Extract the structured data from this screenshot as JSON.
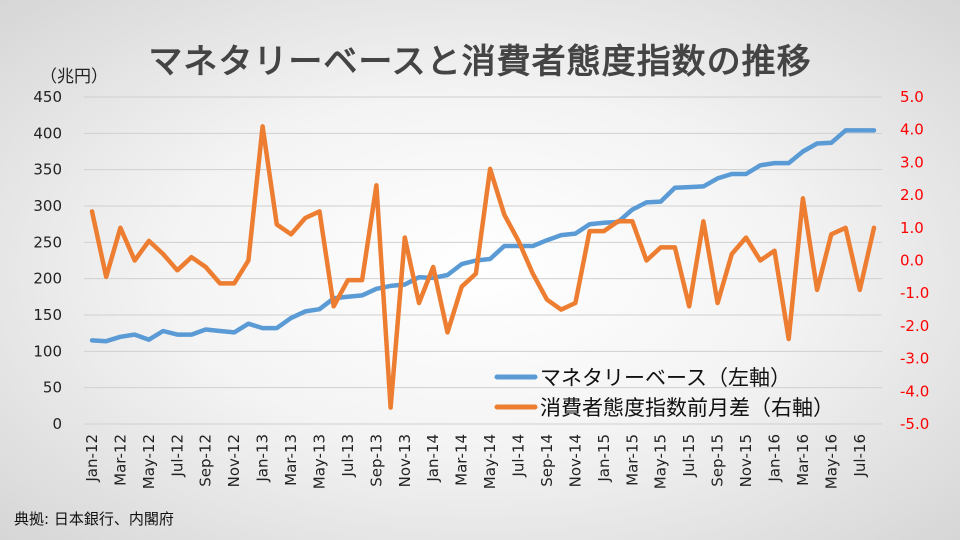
{
  "title": "マネタリーベースと消費者態度指数の推移",
  "left_unit": "（兆円）",
  "source": "典拠: 日本銀行、内閣府",
  "colors": {
    "series1": "#5b9bd5",
    "series2": "#ed7d31",
    "left_axis": "#222222",
    "right_axis": "#ff0000"
  },
  "chart_data": {
    "type": "line",
    "x_labels_shown": [
      "Jan-12",
      "Mar-12",
      "May-12",
      "Jul-12",
      "Sep-12",
      "Nov-12",
      "Jan-13",
      "Mar-13",
      "May-13",
      "Jul-13",
      "Sep-13",
      "Nov-13",
      "Jan-14",
      "Mar-14",
      "May-14",
      "Jul-14",
      "Sep-14",
      "Nov-14",
      "Jan-15",
      "Mar-15",
      "May-15",
      "Jul-15",
      "Sep-15",
      "Nov-15",
      "Jan-16",
      "Mar-16",
      "May-16",
      "Jul-16"
    ],
    "y_left": {
      "min": 0,
      "max": 450,
      "ticks": [
        "0",
        "50",
        "100",
        "150",
        "200",
        "250",
        "300",
        "350",
        "400",
        "450"
      ]
    },
    "y_right": {
      "min": -5,
      "max": 5,
      "ticks": [
        "-5.0",
        "-4.0",
        "-3.0",
        "-2.0",
        "-1.0",
        "0.0",
        "1.0",
        "2.0",
        "3.0",
        "4.0",
        "5.0"
      ]
    },
    "legend_position": "bottom-right",
    "series": [
      {
        "name": "マネタリーベース（左軸）",
        "axis": "left",
        "values": [
          115,
          114,
          120,
          123,
          116,
          128,
          123,
          123,
          130,
          128,
          126,
          138,
          132,
          132,
          146,
          155,
          158,
          173,
          175,
          177,
          186,
          190,
          192,
          202,
          201,
          205,
          220,
          225,
          227,
          245,
          245,
          245,
          253,
          260,
          262,
          275,
          277,
          278,
          295,
          305,
          306,
          325,
          326,
          327,
          338,
          344,
          344,
          356,
          359,
          359,
          375,
          386,
          387,
          404,
          404,
          404
        ]
      },
      {
        "name": "消費者態度指数前月差（右軸）",
        "axis": "right",
        "values": [
          1.5,
          -0.5,
          1.0,
          0.0,
          0.6,
          0.2,
          -0.3,
          0.1,
          -0.2,
          -0.7,
          -0.7,
          0.0,
          4.1,
          1.1,
          0.8,
          1.3,
          1.5,
          -1.4,
          -0.6,
          -0.6,
          2.3,
          -4.5,
          0.7,
          -1.3,
          -0.2,
          -2.2,
          -0.8,
          -0.4,
          2.8,
          1.4,
          0.6,
          -0.4,
          -1.2,
          -1.5,
          -1.3,
          0.9,
          0.9,
          1.2,
          1.2,
          0.0,
          0.4,
          0.4,
          -1.4,
          1.2,
          -1.3,
          0.2,
          0.7,
          0.0,
          0.3,
          -2.4,
          1.9,
          -0.9,
          0.8,
          1.0,
          -0.9,
          1.0
        ]
      }
    ]
  }
}
